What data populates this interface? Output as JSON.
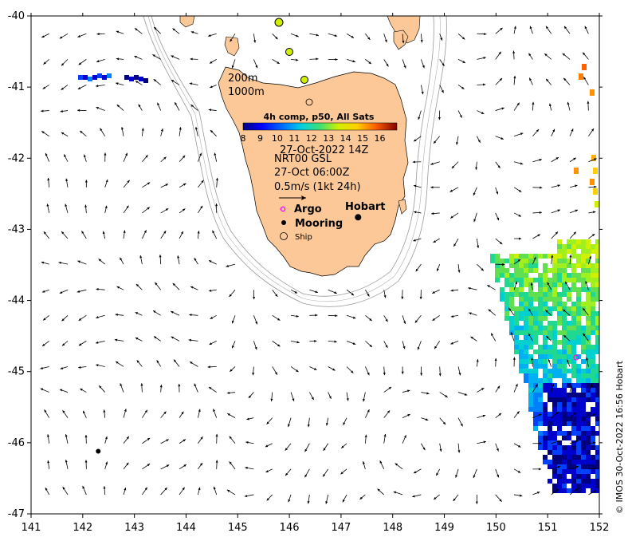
{
  "chart_data": {
    "type": "map",
    "xlim": [
      141,
      152
    ],
    "ylim": [
      -47,
      -40
    ],
    "x_ticks": [
      141,
      142,
      143,
      144,
      145,
      146,
      147,
      148,
      149,
      150,
      151,
      152
    ],
    "y_ticks": [
      -40,
      -41,
      -42,
      -43,
      -44,
      -45,
      -46,
      -47
    ],
    "x_tick_labels": [
      "141",
      "142",
      "143",
      "144",
      "145",
      "146",
      "147",
      "148",
      "149",
      "150",
      "151",
      "152"
    ],
    "y_tick_labels": [
      "-40",
      "-41",
      "-42",
      "-43",
      "-44",
      "-45",
      "-46",
      "-47"
    ],
    "colorbar": {
      "title": "4h comp, p50, All Sats",
      "tick_labels": [
        "8",
        "9",
        "10",
        "11",
        "12",
        "13",
        "14",
        "15",
        "16"
      ],
      "range": [
        8,
        17
      ]
    },
    "contours": [
      "200m",
      "1000m"
    ],
    "info_lines": [
      "27-Oct-2022 14Z",
      "NRT00 GSL",
      "27-Oct 06:00Z",
      "0.5m/s (1kt 24h)"
    ],
    "legend": {
      "argo": "Argo",
      "mooring": "Mooring",
      "ship": "Ship"
    },
    "places": [
      {
        "name": "Hobart",
        "lon": 147.33,
        "lat": -42.88
      }
    ],
    "moorings": [
      {
        "lon": 142.3,
        "lat": -46.12
      },
      {
        "lon": 147.33,
        "lat": -42.83
      }
    ],
    "credit": "© IMOS 30-Oct-2022 16:56 Hobart",
    "colors": {
      "land": "#fcc897",
      "contour": "#999999",
      "argo": "#ff00ff"
    }
  }
}
